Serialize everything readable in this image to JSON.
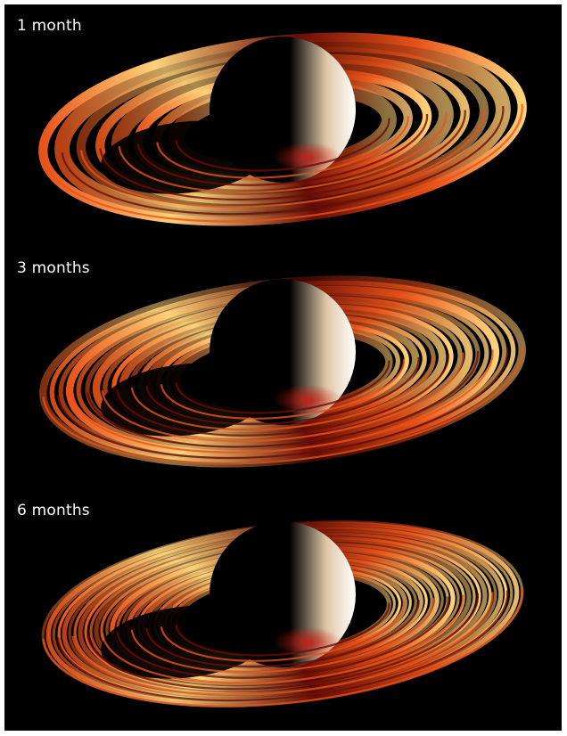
{
  "panels": [
    {
      "label": "1 month",
      "ring_count": 8
    },
    {
      "label": "3 months",
      "ring_count": 16
    },
    {
      "label": "6 months",
      "ring_count": 26
    }
  ],
  "colors": {
    "background": "#000000",
    "ring_bright": "#ffd27a",
    "ring_mid": "#e8531a",
    "ring_dark": "#6b0d05",
    "planet_lit": "#ffffff",
    "planet_glow": "#c41e12"
  }
}
